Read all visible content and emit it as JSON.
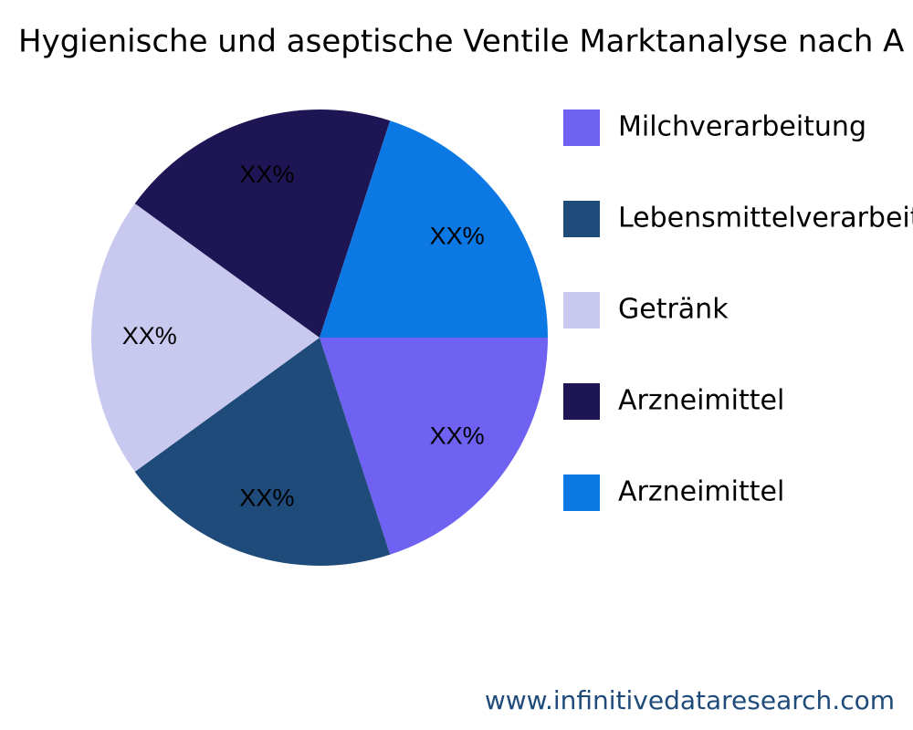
{
  "chart_data": {
    "type": "pie",
    "title": "Hygienische und aseptische Ventile Marktanalyse nach A",
    "categories": [
      "Milchverarbeitung",
      "Lebensmittelverarbeit",
      "Getränk",
      "Arzneimittel",
      "Arzneimittel"
    ],
    "values": [
      20,
      20,
      20,
      20,
      20
    ],
    "value_labels": [
      "XX%",
      "XX%",
      "XX%",
      "XX%",
      "XX%"
    ],
    "colors": [
      "#6f61f1",
      "#1f4b7a",
      "#c9c9f0",
      "#1e1654",
      "#0b78e4"
    ],
    "legend": "right",
    "watermark": "www.infinitivedataresearch.com"
  }
}
